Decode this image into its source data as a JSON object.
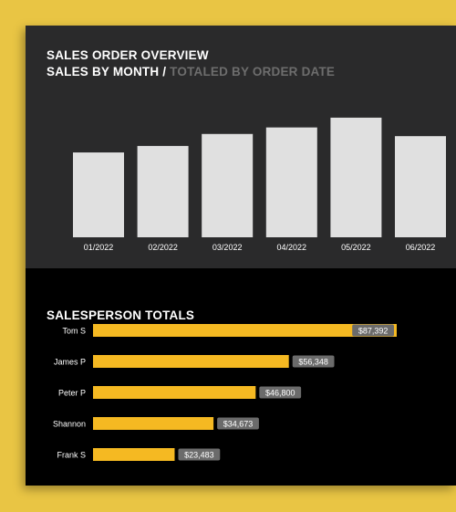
{
  "header": {
    "title": "SALES ORDER OVERVIEW",
    "subtitle_main": "SALES BY MONTH /",
    "subtitle_muted": "TOTALED BY ORDER DATE"
  },
  "salesperson": {
    "title": "SALESPERSON TOTALS"
  },
  "colors": {
    "background": "#e9c544",
    "top_panel": "#2a2a2b",
    "bottom_panel": "#000000",
    "month_bar": "#e0e0e0",
    "person_bar": "#f5b922",
    "value_badge": "#6b6b6b"
  },
  "chart_data": [
    {
      "type": "bar",
      "categories": [
        "01/2022",
        "02/2022",
        "03/2022",
        "04/2022",
        "05/2022",
        "06/2022"
      ],
      "values": [
        78,
        84,
        95,
        101,
        110,
        93
      ],
      "ylim": [
        0,
        120
      ],
      "grid": false,
      "xlabel": "",
      "ylabel": ""
    },
    {
      "type": "bar",
      "orientation": "horizontal",
      "categories": [
        "Tom S",
        "James P",
        "Peter P",
        "Shannon",
        "Frank S"
      ],
      "values": [
        87392,
        56348,
        46800,
        34673,
        23483
      ],
      "data_labels": [
        "$87,392",
        "$56,348",
        "$46,800",
        "$34,673",
        "$23,483"
      ],
      "xlim": [
        0,
        87392
      ],
      "grid": false
    }
  ]
}
